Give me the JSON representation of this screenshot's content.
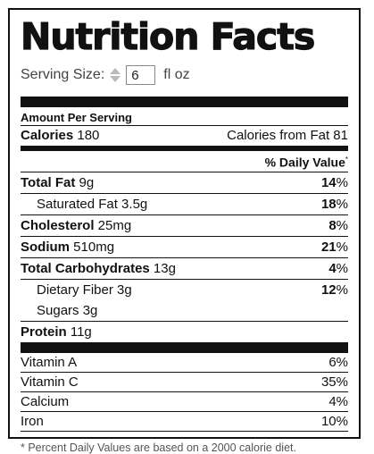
{
  "title": "Nutrition Facts",
  "serving": {
    "label": "Serving Size:",
    "value": "6",
    "unit": "fl oz"
  },
  "amount_per_serving": "Amount Per Serving",
  "calories": {
    "label": "Calories",
    "value": "180",
    "from_fat": "Calories from Fat 81"
  },
  "dv_header": "% Daily Value",
  "dv_star": "*",
  "nutrients": [
    {
      "name": "Total Fat",
      "amount": "9g",
      "pct": "14",
      "bold": true,
      "indent": false
    },
    {
      "name": "Saturated Fat",
      "amount": "3.5g",
      "pct": "18",
      "bold": false,
      "indent": true
    },
    {
      "name": "Cholesterol",
      "amount": "25mg",
      "pct": "8",
      "bold": true,
      "indent": false
    },
    {
      "name": "Sodium",
      "amount": "510mg",
      "pct": "21",
      "bold": true,
      "indent": false
    },
    {
      "name": "Total Carbohydrates",
      "amount": "13g",
      "pct": "4",
      "bold": true,
      "indent": false
    },
    {
      "name": "Dietary Fiber",
      "amount": "3g",
      "pct": "12",
      "bold": false,
      "indent": true
    },
    {
      "name": "Sugars",
      "amount": "3g",
      "pct": "",
      "bold": false,
      "indent": true
    }
  ],
  "protein": {
    "name": "Protein",
    "amount": "11g"
  },
  "vitamins": [
    {
      "name": "Vitamin A",
      "pct": "6%"
    },
    {
      "name": "Vitamin C",
      "pct": "35%"
    },
    {
      "name": "Calcium",
      "pct": "4%"
    },
    {
      "name": "Iron",
      "pct": "10%"
    }
  ],
  "percent_sign": "%",
  "footnote": "* Percent Daily Values are based on a 2000 calorie diet."
}
